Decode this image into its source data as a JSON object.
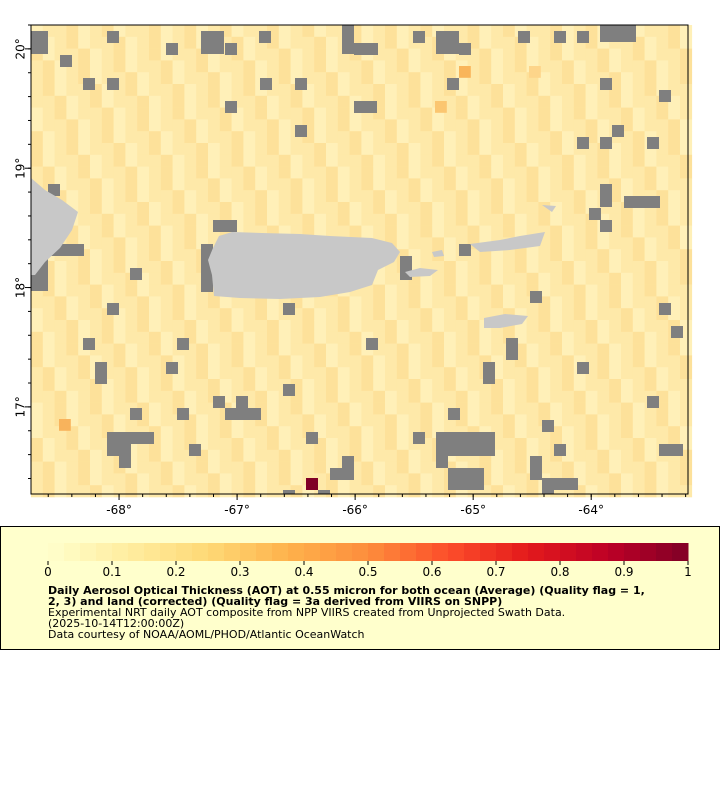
{
  "map": {
    "xlim": [
      -68.746,
      -63.18
    ],
    "ylim": [
      16.27,
      20.2
    ],
    "xticks": [
      {
        "value": -68,
        "label": "-68°"
      },
      {
        "value": -67,
        "label": "-67°"
      },
      {
        "value": -66,
        "label": "-66°"
      },
      {
        "value": -65,
        "label": "-65°"
      },
      {
        "value": -64,
        "label": "-64°"
      }
    ],
    "yticks": [
      {
        "value": 17,
        "label": "17°"
      },
      {
        "value": 18,
        "label": "18°"
      },
      {
        "value": 19,
        "label": "19°"
      },
      {
        "value": 20,
        "label": "20°"
      }
    ],
    "ocean_color": "#fee9a9",
    "missing_color": "#7f7f7f",
    "land_color": "#c8c8c8"
  },
  "colorbar": {
    "lim": [
      0,
      1
    ],
    "ticks": [
      0,
      0.1,
      0.2,
      0.3,
      0.4,
      0.5,
      0.6,
      0.7,
      0.8,
      0.9,
      1
    ],
    "colors": [
      "#ffffcc",
      "#ffeda0",
      "#fed976",
      "#feb24c",
      "#fd8d3c",
      "#fc4e2a",
      "#e31a1c",
      "#bd0026",
      "#800026"
    ]
  },
  "caption": {
    "title_lines": [
      "Daily Aerosol Optical Thickness (AOT) at 0.55 micron for both ocean (Average) (Quality flag = 1,",
      "2, 3) and land (corrected) (Quality flag = 3a derived from VIIRS on SNPP)"
    ],
    "lines": [
      "Experimental NRT daily AOT composite from NPP VIIRS created from Unprojected Swath Data.",
      "(2025-10-14T12:00:00Z)",
      "Data courtesy of NOAA/AOML/PHOD/Atlantic OceanWatch"
    ]
  }
}
